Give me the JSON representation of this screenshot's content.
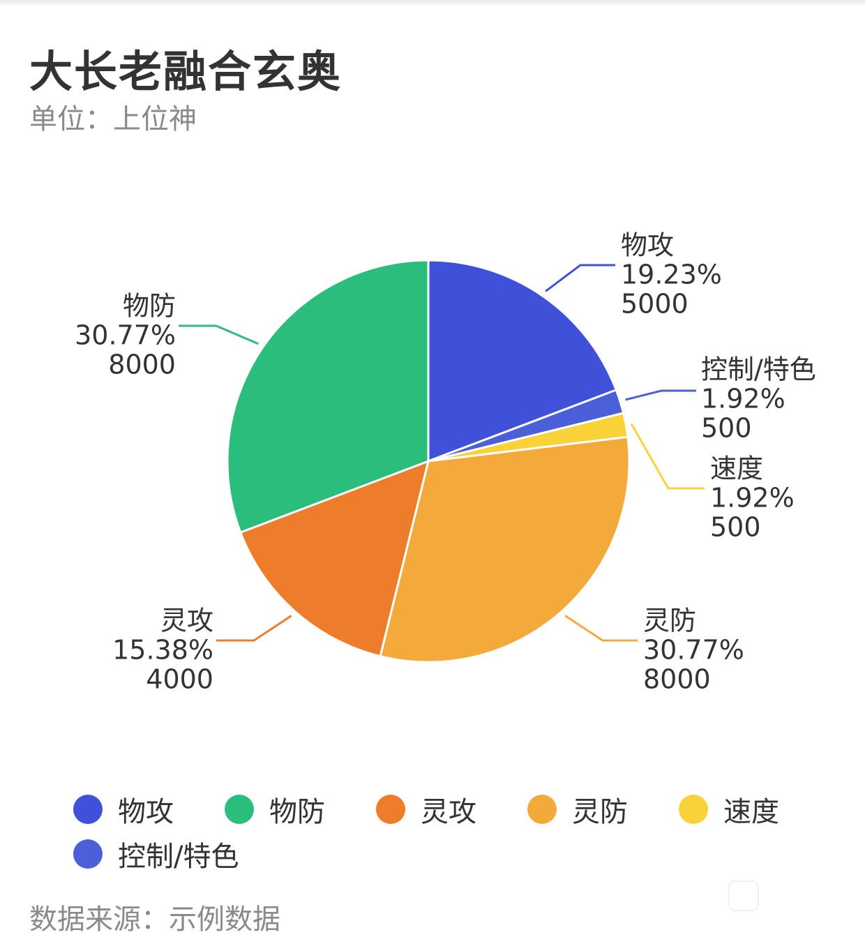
{
  "title": "大长老融合玄奥",
  "subtitle": "单位：上位神",
  "source": "数据来源：示例数据",
  "chart_data": {
    "type": "pie",
    "title": "大长老融合玄奥",
    "subtitle": "单位：上位神",
    "slices": [
      {
        "name": "物攻",
        "value": 5000,
        "percent": "19.23%",
        "color": "#3f51d9"
      },
      {
        "name": "控制/特色",
        "value": 500,
        "percent": "1.92%",
        "color": "#4a5fd8"
      },
      {
        "name": "速度",
        "value": 500,
        "percent": "1.92%",
        "color": "#f9d23a"
      },
      {
        "name": "灵防",
        "value": 8000,
        "percent": "30.77%",
        "color": "#f3aa3b"
      },
      {
        "name": "灵攻",
        "value": 4000,
        "percent": "15.38%",
        "color": "#ee7d2b"
      },
      {
        "name": "物防",
        "value": 8000,
        "percent": "30.77%",
        "color": "#2bbd7c"
      }
    ],
    "legend": [
      "物攻",
      "物防",
      "灵攻",
      "灵防",
      "速度",
      "控制/特色"
    ],
    "legend_placement": "bottom",
    "start": "top, clockwise"
  }
}
